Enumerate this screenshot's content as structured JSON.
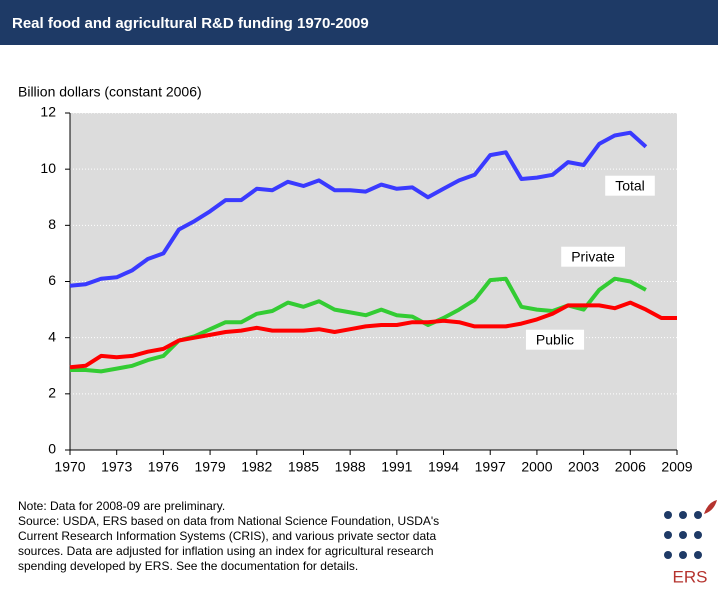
{
  "chart_data": {
    "type": "line",
    "title": "Real food and agricultural R&D funding 1970-2009",
    "y_label": "Billion dollars (constant 2006)",
    "x": [
      1970,
      1971,
      1972,
      1973,
      1974,
      1975,
      1976,
      1977,
      1978,
      1979,
      1980,
      1981,
      1982,
      1983,
      1984,
      1985,
      1986,
      1987,
      1988,
      1989,
      1990,
      1991,
      1992,
      1993,
      1994,
      1995,
      1996,
      1997,
      1998,
      1999,
      2000,
      2001,
      2002,
      2003,
      2004,
      2005,
      2006,
      2007,
      2008,
      2009
    ],
    "series": [
      {
        "name": "Total",
        "color": "#3a3aff",
        "values": [
          5.85,
          5.9,
          6.1,
          6.15,
          6.4,
          6.8,
          7.0,
          7.85,
          8.15,
          8.5,
          8.9,
          8.9,
          9.3,
          9.25,
          9.55,
          9.4,
          9.6,
          9.25,
          9.25,
          9.2,
          9.45,
          9.3,
          9.35,
          9.0,
          9.3,
          9.6,
          9.8,
          10.5,
          10.6,
          9.65,
          9.7,
          9.8,
          10.25,
          10.15,
          10.9,
          11.2,
          11.3,
          10.8,
          null,
          null
        ]
      },
      {
        "name": "Private",
        "color": "#33cc33",
        "values": [
          2.85,
          2.85,
          2.8,
          2.9,
          3.0,
          3.2,
          3.35,
          3.9,
          4.05,
          4.3,
          4.55,
          4.55,
          4.85,
          4.95,
          5.25,
          5.1,
          5.3,
          5.0,
          4.9,
          4.8,
          5.0,
          4.8,
          4.75,
          4.45,
          4.7,
          5.0,
          5.35,
          6.05,
          6.1,
          5.1,
          5.0,
          4.95,
          5.15,
          5.0,
          5.7,
          6.1,
          6.0,
          5.7,
          null,
          null
        ]
      },
      {
        "name": "Public",
        "color": "#ff0000",
        "values": [
          2.95,
          3.0,
          3.35,
          3.3,
          3.35,
          3.5,
          3.6,
          3.9,
          4.0,
          4.1,
          4.2,
          4.25,
          4.35,
          4.25,
          4.25,
          4.25,
          4.3,
          4.2,
          4.3,
          4.4,
          4.45,
          4.45,
          4.55,
          4.55,
          4.6,
          4.55,
          4.4,
          4.4,
          4.4,
          4.5,
          4.65,
          4.85,
          5.15,
          5.15,
          5.15,
          5.05,
          5.25,
          5.0,
          4.7,
          4.7
        ]
      }
    ],
    "xlim": [
      1970,
      2009
    ],
    "xticks": [
      1970,
      1973,
      1976,
      1979,
      1982,
      1985,
      1988,
      1991,
      1994,
      1997,
      2000,
      2003,
      2006,
      2009
    ],
    "ylim": [
      0,
      12
    ],
    "yticks": [
      0,
      2,
      4,
      6,
      8,
      10,
      12
    ],
    "grid": true,
    "notes": [
      "Note: Data for 2008-09 are preliminary.",
      "Source: USDA, ERS based on data from National Science Foundation, USDA's",
      "Current Research Information Systems (CRIS), and various private sector data",
      "sources. Data are adjusted for inflation using an index for agricultural research",
      "spending developed by ERS. See the documentation for details."
    ],
    "logo_text": "ERS"
  }
}
